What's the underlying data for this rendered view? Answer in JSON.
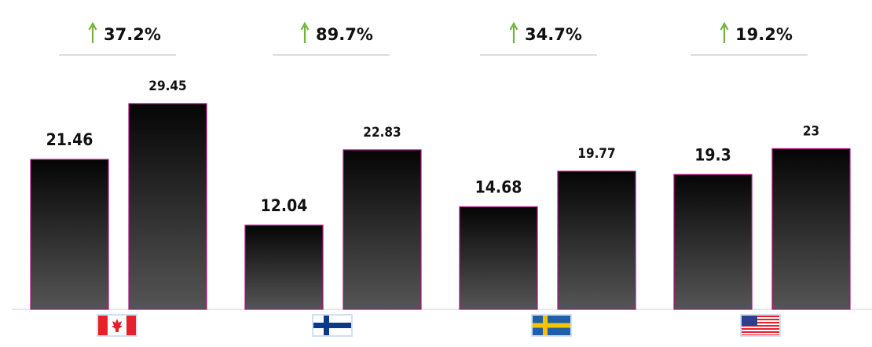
{
  "chart_data": {
    "type": "bar",
    "categories": [
      "Canada",
      "Finland",
      "Sweden",
      "United States"
    ],
    "values_first": [
      21.46,
      12.04,
      14.68,
      19.3
    ],
    "values_second": [
      29.45,
      22.83,
      19.77,
      23
    ],
    "value_labels_first": [
      "21.46",
      "12.04",
      "14.68",
      "19.3"
    ],
    "value_labels_second": [
      "29.45",
      "22.83",
      "19.77",
      "23"
    ],
    "changes": [
      "37.2%",
      "89.7%",
      "34.7%",
      "19.2%"
    ],
    "change_direction": "up",
    "ylim": [
      0,
      29.45
    ],
    "grid": false,
    "legend": "none",
    "flag_icons": [
      "canada-flag-icon",
      "finland-flag-icon",
      "sweden-flag-icon",
      "usa-flag-icon"
    ]
  },
  "colors": {
    "bar_top": "#050505",
    "bar_bottom": "#555555",
    "bar_outline": "#b0127e",
    "arrow": "#6fb33a",
    "divider": "#c8c8c8",
    "baseline": "#d0d0d0",
    "flag_red": "#e8202a",
    "finland_blue": "#0a3a8c",
    "sweden_blue": "#1f5fa9",
    "sweden_yellow": "#f4c400",
    "usa_blue": "#2f3f8f",
    "flag_border": "#cfe0f5"
  }
}
